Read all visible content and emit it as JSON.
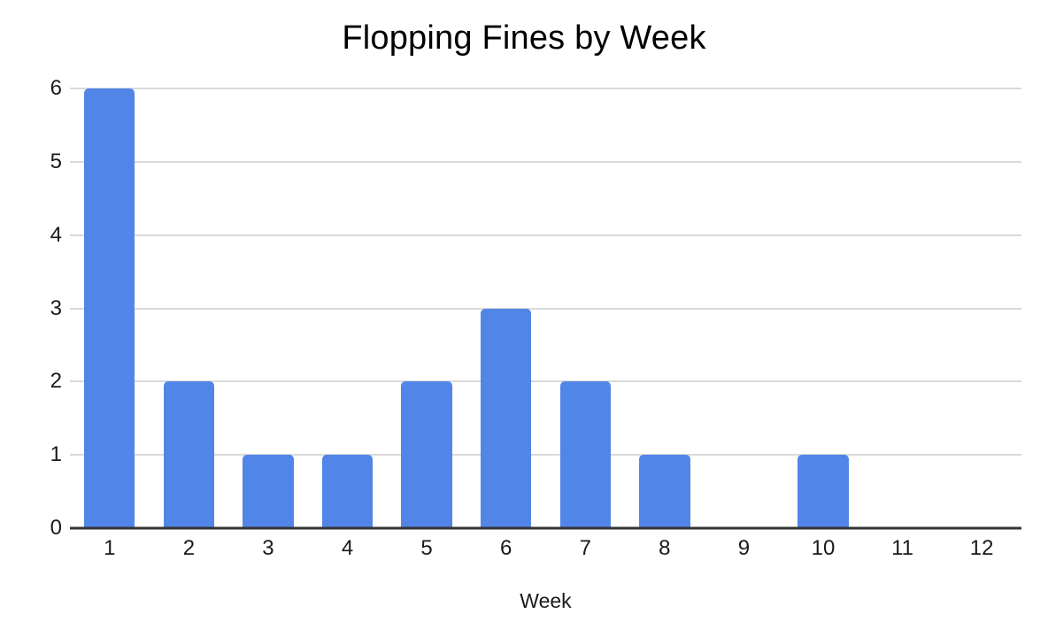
{
  "chart_data": {
    "type": "bar",
    "title": "Flopping Fines by Week",
    "xlabel": "Week",
    "ylabel": "",
    "categories": [
      "1",
      "2",
      "3",
      "4",
      "5",
      "6",
      "7",
      "8",
      "9",
      "10",
      "11",
      "12"
    ],
    "values": [
      6,
      2,
      1,
      1,
      2,
      3,
      2,
      1,
      0,
      1,
      0,
      0
    ],
    "ylim": [
      0,
      6
    ],
    "yticks": [
      0,
      1,
      2,
      3,
      4,
      5,
      6
    ],
    "legend_position": "none",
    "grid": true,
    "bar_color": "#5285e8",
    "gridline_color": "#d9d9d9",
    "axis_line_color": "#333333",
    "text_color": "#1a1a1a",
    "background_color": "#ffffff"
  }
}
